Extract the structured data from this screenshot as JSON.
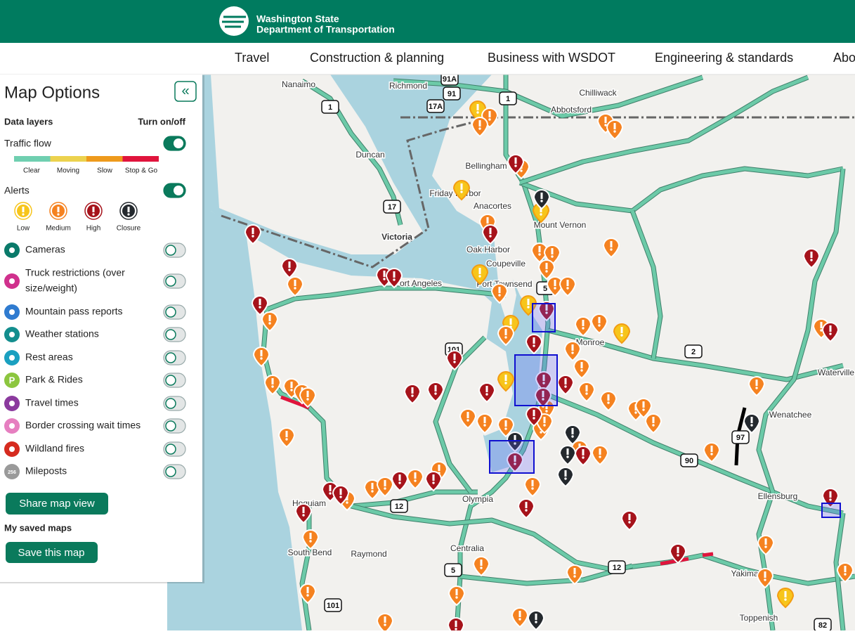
{
  "header": {
    "org_line1": "Washington State",
    "org_line2": "Department of Transportation"
  },
  "nav": [
    "Travel",
    "Construction & planning",
    "Business with WSDOT",
    "Engineering & standards",
    "About"
  ],
  "panel": {
    "title": "Map Options",
    "collapse": "«",
    "data_layers": "Data layers",
    "turn_on_off": "Turn on/off",
    "traffic_flow": {
      "label": "Traffic flow",
      "on": true,
      "legend": [
        "Clear",
        "Moving",
        "Slow",
        "Stop & Go"
      ],
      "colors": [
        "#6fcfb0",
        "#ecd24e",
        "#ee9a1c",
        "#e0143c"
      ]
    },
    "alerts": {
      "label": "Alerts",
      "on": true,
      "legend": [
        "Low",
        "Medium",
        "High",
        "Closure"
      ],
      "colors": [
        "#f7c51b",
        "#f58220",
        "#a6131b",
        "#24292e"
      ]
    },
    "layers": [
      {
        "name": "Cameras",
        "color": "#0a7a6a",
        "on": false
      },
      {
        "name": "Truck restrictions (over",
        "name2": "size/weight)",
        "color": "#d0318d",
        "on": false
      },
      {
        "name": "Mountain pass reports",
        "color": "#2f7bd0",
        "on": false
      },
      {
        "name": "Weather stations",
        "color": "#138e8e",
        "on": false
      },
      {
        "name": "Rest areas",
        "color": "#1aa0c0",
        "on": false
      },
      {
        "name": "Park & Rides",
        "color": "#8cc63f",
        "on": false,
        "icon_text": "P"
      },
      {
        "name": "Travel times",
        "color": "#8b3a9e",
        "on": false
      },
      {
        "name": "Border crossing wait times",
        "color": "#e67fc0",
        "on": false
      },
      {
        "name": "Wildland fires",
        "color": "#d62b1f",
        "on": false
      },
      {
        "name": "Mileposts",
        "color": "#9a9a9a",
        "on": false,
        "icon_text": "256"
      }
    ],
    "share": "Share map view",
    "saved_heading": "My saved maps",
    "save": "Save this map"
  },
  "map": {
    "places": [
      "Nanaimo",
      "Richmond",
      "Chilliwack",
      "Abbotsford",
      "Duncan",
      "Bellingham",
      "Friday Harbor",
      "Anacortes",
      "Mount Vernon",
      "Victoria",
      "Oak Harbor",
      "Coupeville",
      "Port Angeles",
      "Port Townsend",
      "Monroe",
      "Wenatchee",
      "Waterville",
      "Olympia",
      "Ellensburg",
      "Hoquiam",
      "South Bend",
      "Raymond",
      "Centralia",
      "Yakima",
      "Toppenish"
    ],
    "shields": [
      "91A",
      "91",
      "17A",
      "1",
      "1",
      "17",
      "101",
      "5",
      "2",
      "90",
      "97",
      "12",
      "12",
      "5",
      "101",
      "82"
    ]
  }
}
